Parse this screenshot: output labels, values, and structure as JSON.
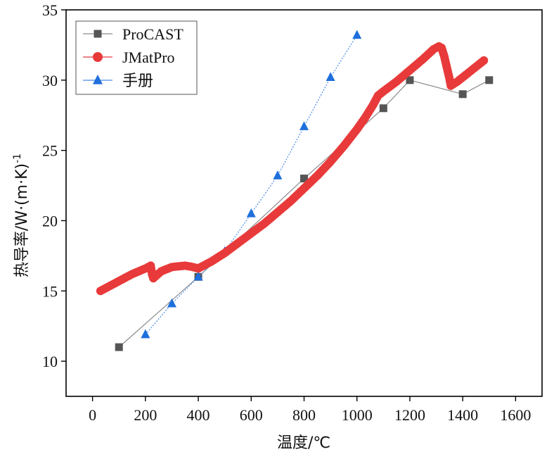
{
  "chart_data": {
    "type": "line",
    "xlabel": "温度/℃",
    "ylabel_main": "热导率/W·(m·K)",
    "ylabel_sup": "-1",
    "xlim": [
      -100,
      1700
    ],
    "ylim": [
      7.5,
      35
    ],
    "xticks": [
      0,
      200,
      400,
      600,
      800,
      1000,
      1200,
      1400,
      1600
    ],
    "yticks": [
      10,
      15,
      20,
      25,
      30,
      35
    ],
    "legend_position": "top-left",
    "series": [
      {
        "name": "ProCAST",
        "marker": "square",
        "color": "#555555",
        "line_color": "#8a8a8a",
        "x": [
          100,
          400,
          800,
          1100,
          1200,
          1400,
          1500
        ],
        "y": [
          11.0,
          16.0,
          23.0,
          28.0,
          30.0,
          29.0,
          30.0
        ]
      },
      {
        "name": "JMatPro",
        "marker": "circle",
        "color": "#e83a3a",
        "x": [
          30,
          60,
          100,
          150,
          200,
          220,
          225,
          230,
          260,
          300,
          350,
          380,
          400,
          450,
          500,
          550,
          600,
          650,
          700,
          750,
          800,
          850,
          900,
          950,
          1000,
          1030,
          1060,
          1080,
          1100,
          1150,
          1200,
          1250,
          1290,
          1310,
          1320,
          1330,
          1340,
          1350,
          1355,
          1380,
          1420,
          1460,
          1480
        ],
        "y": [
          15.0,
          15.3,
          15.7,
          16.2,
          16.6,
          16.8,
          16.2,
          15.9,
          16.4,
          16.7,
          16.8,
          16.7,
          16.6,
          17.1,
          17.7,
          18.4,
          19.1,
          19.8,
          20.6,
          21.4,
          22.3,
          23.2,
          24.2,
          25.3,
          26.5,
          27.3,
          28.2,
          28.9,
          29.2,
          29.9,
          30.7,
          31.5,
          32.2,
          32.4,
          32.3,
          31.7,
          30.9,
          30.1,
          29.6,
          29.9,
          30.5,
          31.1,
          31.4
        ]
      },
      {
        "name": "手册",
        "marker": "triangle",
        "color": "#1f6fdc",
        "line_color": "#4a8ae6",
        "x": [
          200,
          300,
          400,
          500,
          600,
          700,
          800,
          900,
          1000
        ],
        "y": [
          11.9,
          14.1,
          16.0,
          17.8,
          20.5,
          23.2,
          26.7,
          30.2,
          33.2
        ]
      }
    ]
  }
}
